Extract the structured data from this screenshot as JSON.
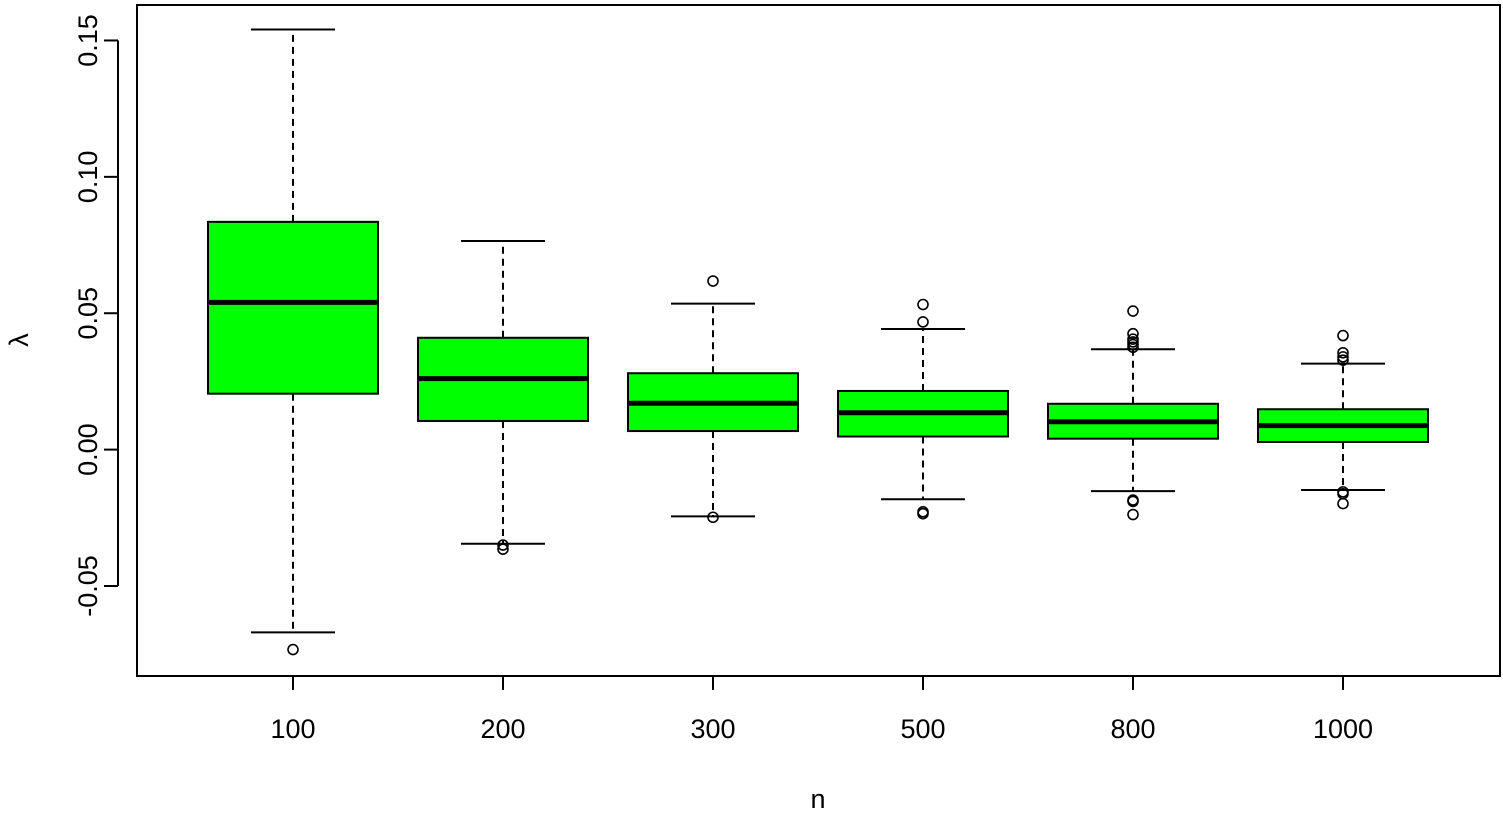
{
  "chart_data": {
    "type": "boxplot",
    "xlabel": "n",
    "ylabel": "λ",
    "categories": [
      "100",
      "200",
      "300",
      "500",
      "800",
      "1000"
    ],
    "ylim": [
      -0.083,
      0.163
    ],
    "yticks": [
      -0.05,
      0.0,
      0.05,
      0.1,
      0.15
    ],
    "ytick_labels": [
      "-0.05",
      "0.00",
      "0.05",
      "0.10",
      "0.15"
    ],
    "box_color": "#00ff00",
    "grid": false,
    "boxes": [
      {
        "category": "100",
        "whisker_low": -0.067,
        "q1": 0.0205,
        "median": 0.054,
        "q3": 0.0835,
        "whisker_high": 0.154,
        "outliers": [
          -0.0733
        ]
      },
      {
        "category": "200",
        "whisker_low": -0.0345,
        "q1": 0.0105,
        "median": 0.026,
        "q3": 0.041,
        "whisker_high": 0.0765,
        "outliers": [
          -0.035,
          -0.0365
        ]
      },
      {
        "category": "300",
        "whisker_low": -0.0245,
        "q1": 0.0068,
        "median": 0.017,
        "q3": 0.028,
        "whisker_high": 0.0535,
        "outliers": [
          0.0618,
          -0.0248
        ]
      },
      {
        "category": "500",
        "whisker_low": -0.0182,
        "q1": 0.0048,
        "median": 0.0135,
        "q3": 0.0215,
        "whisker_high": 0.0442,
        "outliers": [
          0.0532,
          0.0468,
          -0.0228,
          -0.0235
        ]
      },
      {
        "category": "800",
        "whisker_low": -0.0152,
        "q1": 0.004,
        "median": 0.0102,
        "q3": 0.0168,
        "whisker_high": 0.0368,
        "outliers": [
          0.0508,
          0.0425,
          0.0405,
          0.0395,
          0.0385,
          0.0375,
          -0.0185,
          -0.019,
          -0.0238
        ]
      },
      {
        "category": "1000",
        "whisker_low": -0.0148,
        "q1": 0.0028,
        "median": 0.0088,
        "q3": 0.0148,
        "whisker_high": 0.0315,
        "outliers": [
          0.0418,
          0.0355,
          0.034,
          0.0328,
          -0.0155,
          -0.0162,
          -0.0198
        ]
      }
    ]
  }
}
